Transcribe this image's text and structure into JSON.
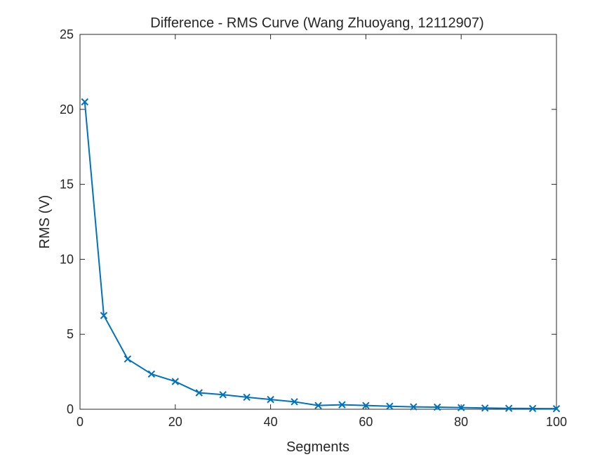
{
  "chart_data": {
    "type": "line",
    "title": "Difference - RMS Curve (Wang Zhuoyang, 12112907)",
    "xlabel": "Segments",
    "ylabel": "RMS (V)",
    "xlim": [
      0,
      100
    ],
    "ylim": [
      0,
      25
    ],
    "xticks": [
      0,
      20,
      40,
      60,
      80,
      100
    ],
    "yticks": [
      0,
      5,
      10,
      15,
      20,
      25
    ],
    "grid": false,
    "marker": "x",
    "line_color": "#0072BD",
    "series": [
      {
        "x": [
          1,
          5,
          10,
          15,
          20,
          25,
          30,
          35,
          40,
          45,
          50,
          55,
          60,
          65,
          70,
          75,
          80,
          85,
          90,
          95,
          100
        ],
        "y": [
          20.5,
          6.25,
          3.35,
          2.35,
          1.85,
          1.1,
          0.97,
          0.8,
          0.65,
          0.5,
          0.25,
          0.3,
          0.25,
          0.2,
          0.16,
          0.14,
          0.11,
          0.08,
          0.06,
          0.05,
          0.04
        ]
      }
    ]
  }
}
